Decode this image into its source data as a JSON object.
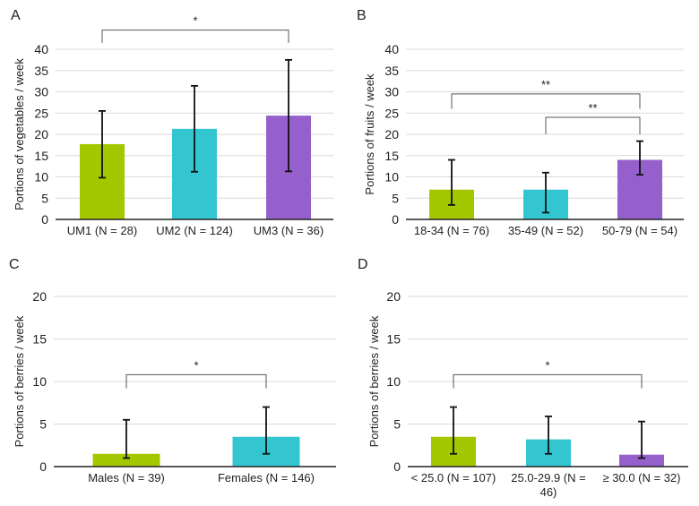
{
  "chart_data": [
    {
      "type": "bar",
      "panel_label": "A",
      "ylabel": "Portions of vegetables / week",
      "ylim": [
        0,
        40
      ],
      "yticks": [
        "0",
        "5",
        "10",
        "15",
        "20",
        "25",
        "30",
        "35",
        "40"
      ],
      "categories": [
        "UM1 (N = 28)",
        "UM2 (N = 124)",
        "UM3 (N = 36)"
      ],
      "values": [
        17.7,
        21.3,
        24.4
      ],
      "err_low": [
        9.8,
        11.2,
        11.3
      ],
      "err_high": [
        25.5,
        31.4,
        37.5
      ],
      "colors": [
        "#a3c800",
        "#33c6d0",
        "#9560cc"
      ],
      "significance": [
        {
          "from": 0,
          "to": 2,
          "label": "*",
          "level": 44.5,
          "drop": 41.5
        }
      ],
      "grid": true
    },
    {
      "type": "bar",
      "panel_label": "B",
      "ylabel": "Portions of fruits / week",
      "ylim": [
        0,
        40
      ],
      "yticks": [
        "0",
        "5",
        "10",
        "15",
        "20",
        "25",
        "30",
        "35",
        "40"
      ],
      "categories": [
        "18-34 (N = 76)",
        "35-49 (N = 52)",
        "50-79 (N = 54)"
      ],
      "values": [
        7.0,
        7.0,
        14.0
      ],
      "err_low": [
        3.4,
        1.6,
        10.5
      ],
      "err_high": [
        14.0,
        11.0,
        18.4
      ],
      "colors": [
        "#a3c800",
        "#33c6d0",
        "#9560cc"
      ],
      "significance": [
        {
          "from": 0,
          "to": 2,
          "label": "**",
          "level": 29.5,
          "drop": 26.0
        },
        {
          "from": 1,
          "to": 2,
          "label": "**",
          "level": 24.0,
          "drop": 20.0
        }
      ],
      "grid": true
    },
    {
      "type": "bar",
      "panel_label": "C",
      "ylabel": "Portions of berries / week",
      "ylim": [
        0,
        20
      ],
      "yticks": [
        "0",
        "5",
        "10",
        "15",
        "20"
      ],
      "categories": [
        "Males (N  = 39)",
        "Females (N = 146)"
      ],
      "values": [
        1.5,
        3.5
      ],
      "err_low": [
        1.0,
        1.5
      ],
      "err_high": [
        5.5,
        7.0
      ],
      "colors": [
        "#a3c800",
        "#33c6d0"
      ],
      "significance": [
        {
          "from": 0,
          "to": 1,
          "label": "*",
          "level": 10.8,
          "drop": 9.2
        }
      ],
      "grid": true
    },
    {
      "type": "bar",
      "panel_label": "D",
      "ylabel": "Portions of berries / week",
      "ylim": [
        0,
        20
      ],
      "yticks": [
        "0",
        "5",
        "10",
        "15",
        "20"
      ],
      "categories": [
        "< 25.0 (N = 107)",
        "25.0-29.9 (N = 46)",
        "≥ 30.0 (N = 32)"
      ],
      "category_lines": [
        [
          "< 25.0 (N = 107)"
        ],
        [
          "25.0-29.9 (N =",
          "46)"
        ],
        [
          "≥ 30.0 (N = 32)"
        ]
      ],
      "values": [
        3.5,
        3.2,
        1.4
      ],
      "err_low": [
        1.5,
        1.5,
        1.0
      ],
      "err_high": [
        7.0,
        5.9,
        5.3
      ],
      "colors": [
        "#a3c800",
        "#33c6d0",
        "#9560cc"
      ],
      "significance": [
        {
          "from": 0,
          "to": 2,
          "label": "*",
          "level": 10.8,
          "drop": 9.2
        }
      ],
      "grid": true
    }
  ]
}
